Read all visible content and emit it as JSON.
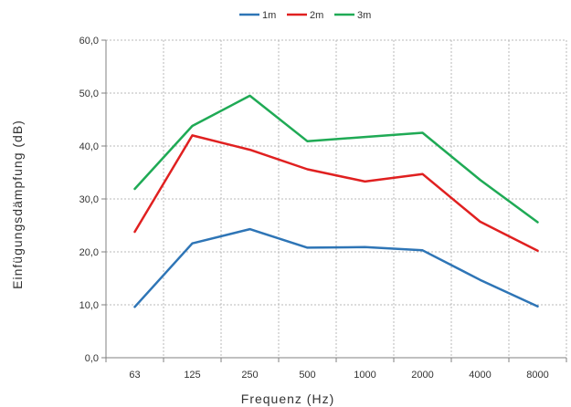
{
  "chart_data": {
    "type": "line",
    "title": "",
    "xlabel": "Frequenz (Hz)",
    "ylabel": "Einfügungsdämpfung (dB)",
    "categories": [
      "63",
      "125",
      "250",
      "500",
      "1000",
      "2000",
      "4000",
      "8000"
    ],
    "ylim": [
      0,
      60
    ],
    "ytick_labels": [
      "0,0",
      "10,0",
      "20,0",
      "30,0",
      "40,0",
      "50,0",
      "60,0"
    ],
    "grid": true,
    "legend_position": "top",
    "series": [
      {
        "name": "1m",
        "color": "#2e75b6",
        "values": [
          9.6,
          21.6,
          24.3,
          20.8,
          20.9,
          20.3,
          14.7,
          9.7
        ]
      },
      {
        "name": "2m",
        "color": "#e02020",
        "values": [
          23.8,
          42.0,
          39.3,
          35.6,
          33.3,
          34.7,
          25.7,
          20.2
        ]
      },
      {
        "name": "3m",
        "color": "#1faa55",
        "values": [
          31.9,
          43.8,
          49.5,
          40.9,
          41.7,
          42.5,
          33.6,
          25.6
        ]
      }
    ]
  }
}
